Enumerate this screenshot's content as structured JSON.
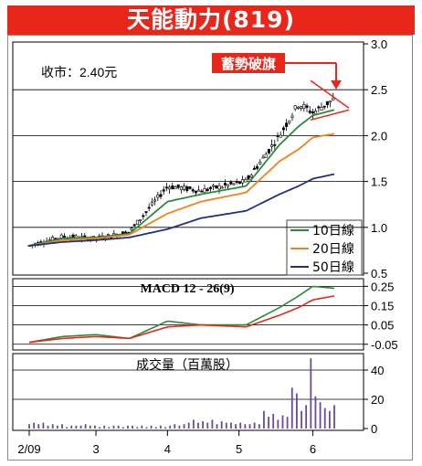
{
  "title": "天能動力(819)",
  "price_label": "收市：2.40元",
  "annotation": "蓄勢破旗",
  "colors": {
    "title_bg": "#e8261a",
    "ma10": "#2a8a3a",
    "ma20": "#f0821e",
    "ma50": "#1f2f86",
    "candle": "#000000",
    "macd_green": "#2a8a3a",
    "macd_red": "#e8261a",
    "volume": "#6a4a9a",
    "annotation_red": "#e8261a"
  },
  "chart_data": [
    {
      "type": "line",
      "title": "",
      "x_ticks": [
        "2/09",
        "3",
        "4",
        "5",
        "6"
      ],
      "y_ticks": [
        "3.0",
        "2.5",
        "2.0",
        "1.5",
        "1.0",
        "0.5"
      ],
      "ylim": [
        0.5,
        3.0
      ],
      "legend": [
        "10日線",
        "20日線",
        "50日線"
      ],
      "legend_position": "bottom-right",
      "x_dates": [
        "2009-02-02",
        "2009-02-16",
        "2009-03-02",
        "2009-03-16",
        "2009-04-01",
        "2009-04-15",
        "2009-05-04",
        "2009-05-18",
        "2009-05-26",
        "2009-06-01",
        "2009-06-10"
      ],
      "series": [
        {
          "name": "price",
          "values": [
            0.8,
            0.9,
            0.88,
            0.95,
            1.45,
            1.4,
            1.5,
            2.0,
            2.35,
            2.25,
            2.4
          ]
        },
        {
          "name": "10日線",
          "values": [
            0.8,
            0.88,
            0.89,
            0.93,
            1.28,
            1.36,
            1.45,
            1.9,
            2.1,
            2.22,
            2.28
          ]
        },
        {
          "name": "20日線",
          "values": [
            0.8,
            0.86,
            0.88,
            0.92,
            1.15,
            1.28,
            1.38,
            1.72,
            1.85,
            1.98,
            2.02
          ]
        },
        {
          "name": "50日線",
          "values": [
            0.8,
            0.84,
            0.86,
            0.89,
            0.98,
            1.1,
            1.18,
            1.36,
            1.45,
            1.53,
            1.58
          ]
        }
      ]
    },
    {
      "type": "line",
      "title": "MACD 12 - 26(9)",
      "y_ticks": [
        "0.25",
        "0.15",
        "0.05",
        "-0.05"
      ],
      "ylim": [
        -0.07,
        0.28
      ],
      "x_dates": [
        "2009-02-02",
        "2009-02-16",
        "2009-03-02",
        "2009-03-16",
        "2009-04-01",
        "2009-04-15",
        "2009-05-04",
        "2009-05-18",
        "2009-05-26",
        "2009-06-01",
        "2009-06-10"
      ],
      "series": [
        {
          "name": "MACD",
          "values": [
            -0.04,
            -0.01,
            0.0,
            -0.02,
            0.07,
            0.05,
            0.05,
            0.14,
            0.2,
            0.25,
            0.24
          ]
        },
        {
          "name": "Signal",
          "values": [
            -0.04,
            -0.02,
            -0.01,
            -0.02,
            0.04,
            0.05,
            0.04,
            0.1,
            0.14,
            0.18,
            0.2
          ]
        }
      ]
    },
    {
      "type": "bar",
      "title": "成交量（百萬股）",
      "y_ticks": [
        "40",
        "20",
        "0"
      ],
      "ylim": [
        0,
        50
      ],
      "volumes": [
        3,
        4,
        3,
        4,
        2,
        3,
        2,
        3,
        1,
        2,
        2,
        2,
        3,
        2,
        2,
        1,
        2,
        1,
        2,
        2,
        1,
        2,
        2,
        1,
        2,
        1,
        2,
        1,
        2,
        1,
        2,
        3,
        2,
        3,
        4,
        6,
        4,
        5,
        4,
        6,
        3,
        5,
        4,
        4,
        3,
        4,
        3,
        3,
        4,
        3,
        12,
        8,
        10,
        6,
        9,
        8,
        28,
        24,
        12,
        16,
        48,
        22,
        18,
        14,
        12,
        16
      ]
    }
  ]
}
